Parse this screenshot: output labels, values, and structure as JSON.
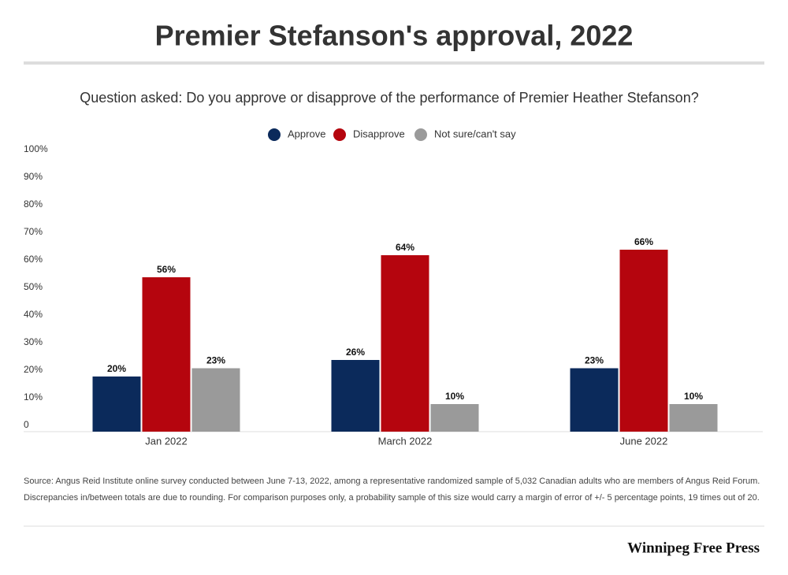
{
  "chart_data": {
    "type": "bar",
    "title": "Premier Stefanson's approval, 2022",
    "subtitle": "Question asked:  Do you approve or disapprove of the performance of Premier Heather Stefanson?",
    "categories": [
      "Jan 2022",
      "March 2022",
      "June 2022"
    ],
    "series": [
      {
        "name": "Approve",
        "color": "#0b2a5b",
        "values": [
          20,
          26,
          23
        ],
        "value_labels": [
          "20%",
          "26%",
          "23%"
        ]
      },
      {
        "name": "Disapprove",
        "color": "#b5050e",
        "values": [
          56,
          64,
          66
        ],
        "value_labels": [
          "56%",
          "64%",
          "66%"
        ]
      },
      {
        "name": "Not sure/can't say",
        "color": "#9a9a9a",
        "values": [
          23,
          10,
          10
        ],
        "value_labels": [
          "23%",
          "10%",
          "10%"
        ]
      }
    ],
    "ylim": [
      0,
      100
    ],
    "yticks": [
      0,
      {
        "value": 10,
        "label": "10%"
      },
      {
        "value": 20,
        "label": "20%"
      },
      {
        "value": 30,
        "label": "30%"
      },
      {
        "value": 40,
        "label": "40%"
      },
      {
        "value": 50,
        "label": "50%"
      },
      {
        "value": 60,
        "label": "60%"
      },
      {
        "value": 70,
        "label": "70%"
      },
      {
        "value": 80,
        "label": "80%"
      },
      {
        "value": 90,
        "label": "90%"
      },
      {
        "value": 100,
        "label": "100%"
      }
    ],
    "grid": false,
    "legend_position": "top",
    "source": [
      "Source: Angus Reid Institute online survey conducted between June 7-13, 2022, among a representative randomized sample of 5,032 Canadian adults who are members of Angus Reid Forum.",
      "Discrepancies in/between totals are due to rounding. For comparison purposes only, a probability sample of this size would carry a margin of error of +/- 5 percentage points, 19 times out of 20."
    ],
    "brand": "Winnipeg Free Press"
  }
}
